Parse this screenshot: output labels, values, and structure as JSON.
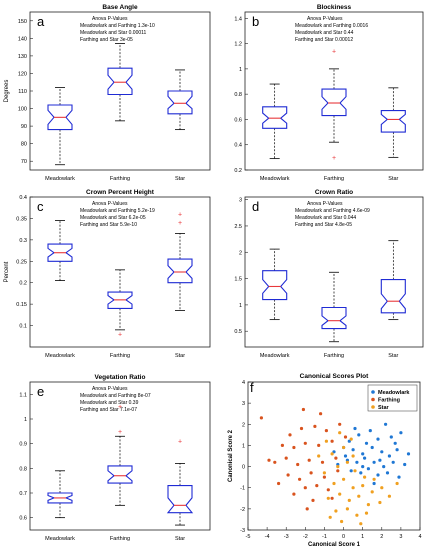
{
  "panels": [
    {
      "letter": "a",
      "title": "Base Angle",
      "ylabel": "Degrees",
      "ylim": [
        65,
        155
      ],
      "ticks": [
        70,
        80,
        90,
        100,
        110,
        120,
        130,
        140,
        150
      ],
      "stats": [
        "Anova P-Values",
        "Meadowlark and Farthing 1.3e-10",
        "Meadowlark and Star          0.00011",
        "Farthing and Star               3e-05"
      ]
    },
    {
      "letter": "b",
      "title": "Blockiness",
      "ylabel": "",
      "ylim": [
        0.2,
        1.45
      ],
      "ticks": [
        0.2,
        0.4,
        0.6,
        0.8,
        1,
        1.2,
        1.4
      ],
      "stats": [
        "Anova P-Values",
        "Meadowlark and Farthing 0.0016",
        "Meadowlark and Star          0.44",
        "Farthing and Star               0.00012"
      ]
    },
    {
      "letter": "c",
      "title": "Crown Percent Height",
      "ylabel": "Percent",
      "ylim": [
        0.05,
        0.4
      ],
      "ticks": [
        0.1,
        0.15,
        0.2,
        0.25,
        0.3,
        0.35,
        0.4
      ],
      "stats": [
        "Anova P-Values",
        "Meadowlark and Farthing 5.2e-19",
        "Meadowlark and Star          6.2e-05",
        "Farthing and Star               5.9e-10"
      ]
    },
    {
      "letter": "d",
      "title": "Crown Ratio",
      "ylabel": "",
      "ylim": [
        0.2,
        3.05
      ],
      "ticks": [
        0.5,
        1,
        1.5,
        2,
        2.5,
        3
      ],
      "stats": [
        "Anova P-Values",
        "Meadowlark and Farthing 4.6e-09",
        "Meadowlark and Star          0.044",
        "Farthing and Star               4.8e-05"
      ]
    },
    {
      "letter": "e",
      "title": "Vegetation Ratio",
      "ylabel": "",
      "ylim": [
        0.55,
        1.15
      ],
      "ticks": [
        0.6,
        0.7,
        0.8,
        0.9,
        1,
        1.1
      ],
      "stats": [
        "Anova P-Values",
        "Meadowlark and Farthing 8e-07",
        "Meadowlark and Star          0.39",
        "Farthing and Star               7.1e-07"
      ]
    }
  ],
  "scatter": {
    "letter": "f",
    "title": "Canonical Scores Plot",
    "xlabel": "Canonical Score 1",
    "ylabel": "Canonical Score 2",
    "xlim": [
      -5,
      4
    ],
    "ylim": [
      -3,
      4
    ],
    "xticks": [
      -5,
      -4,
      -3,
      -2,
      -1,
      0,
      1,
      2,
      3,
      4
    ],
    "yticks": [
      -3,
      -2,
      -1,
      0,
      1,
      2,
      3,
      4
    ]
  },
  "chart_data": [
    {
      "type": "box",
      "title": "Base Angle",
      "ylabel": "Degrees",
      "ylim": [
        65,
        155
      ],
      "categories": [
        "Meadowlark",
        "Farthing",
        "Star"
      ],
      "boxes": [
        {
          "whisker_low": 68,
          "q1": 88,
          "median": 95,
          "q3": 102,
          "whisker_high": 112,
          "notch": [
            91,
            99
          ],
          "outliers": []
        },
        {
          "whisker_low": 93,
          "q1": 108,
          "median": 115,
          "q3": 123,
          "whisker_high": 137,
          "notch": [
            111,
            119
          ],
          "outliers": []
        },
        {
          "whisker_low": 88,
          "q1": 97,
          "median": 103,
          "q3": 110,
          "whisker_high": 122,
          "notch": [
            100,
            107
          ],
          "outliers": []
        }
      ]
    },
    {
      "type": "box",
      "title": "Blockiness",
      "ylabel": "",
      "ylim": [
        0.2,
        1.45
      ],
      "categories": [
        "Meadowlark",
        "Farthing",
        "Star"
      ],
      "boxes": [
        {
          "whisker_low": 0.29,
          "q1": 0.53,
          "median": 0.61,
          "q3": 0.7,
          "whisker_high": 0.88,
          "notch": [
            0.57,
            0.65
          ],
          "outliers": []
        },
        {
          "whisker_low": 0.42,
          "q1": 0.63,
          "median": 0.73,
          "q3": 0.84,
          "whisker_high": 1.0,
          "notch": [
            0.68,
            0.78
          ],
          "outliers": [
            1.14,
            0.3
          ]
        },
        {
          "whisker_low": 0.3,
          "q1": 0.5,
          "median": 0.6,
          "q3": 0.67,
          "whisker_high": 0.85,
          "notch": [
            0.56,
            0.64
          ],
          "outliers": []
        }
      ]
    },
    {
      "type": "box",
      "title": "Crown Percent Height",
      "ylabel": "Percent",
      "ylim": [
        0.05,
        0.4
      ],
      "categories": [
        "Meadowlark",
        "Farthing",
        "Star"
      ],
      "boxes": [
        {
          "whisker_low": 0.205,
          "q1": 0.25,
          "median": 0.27,
          "q3": 0.29,
          "whisker_high": 0.345,
          "notch": [
            0.26,
            0.28
          ],
          "outliers": []
        },
        {
          "whisker_low": 0.09,
          "q1": 0.14,
          "median": 0.16,
          "q3": 0.178,
          "whisker_high": 0.23,
          "notch": [
            0.15,
            0.17
          ],
          "outliers": [
            0.08
          ]
        },
        {
          "whisker_low": 0.135,
          "q1": 0.2,
          "median": 0.225,
          "q3": 0.255,
          "whisker_high": 0.315,
          "notch": [
            0.21,
            0.24
          ],
          "outliers": [
            0.36,
            0.34
          ]
        }
      ]
    },
    {
      "type": "box",
      "title": "Crown Ratio",
      "ylabel": "",
      "ylim": [
        0.2,
        3.05
      ],
      "categories": [
        "Meadowlark",
        "Farthing",
        "Star"
      ],
      "boxes": [
        {
          "whisker_low": 0.72,
          "q1": 1.1,
          "median": 1.35,
          "q3": 1.65,
          "whisker_high": 2.06,
          "notch": [
            1.22,
            1.48
          ],
          "outliers": []
        },
        {
          "whisker_low": 0.3,
          "q1": 0.55,
          "median": 0.7,
          "q3": 0.95,
          "whisker_high": 1.62,
          "notch": [
            0.61,
            0.79
          ],
          "outliers": []
        },
        {
          "whisker_low": 0.72,
          "q1": 0.85,
          "median": 1.07,
          "q3": 1.48,
          "whisker_high": 2.22,
          "notch": [
            0.93,
            1.21
          ],
          "outliers": []
        }
      ]
    },
    {
      "type": "box",
      "title": "Vegetation Ratio",
      "ylabel": "",
      "ylim": [
        0.55,
        1.15
      ],
      "categories": [
        "Meadowlark",
        "Farthing",
        "Star"
      ],
      "boxes": [
        {
          "whisker_low": 0.6,
          "q1": 0.66,
          "median": 0.68,
          "q3": 0.7,
          "whisker_high": 0.79,
          "notch": [
            0.67,
            0.69
          ],
          "outliers": []
        },
        {
          "whisker_low": 0.65,
          "q1": 0.74,
          "median": 0.77,
          "q3": 0.81,
          "whisker_high": 0.93,
          "notch": [
            0.75,
            0.79
          ],
          "outliers": [
            1.05,
            0.95
          ]
        },
        {
          "whisker_low": 0.57,
          "q1": 0.62,
          "median": 0.65,
          "q3": 0.73,
          "whisker_high": 0.82,
          "notch": [
            0.62,
            0.68
          ],
          "outliers": [
            0.91
          ]
        }
      ]
    },
    {
      "type": "scatter",
      "title": "Canonical Scores Plot",
      "xlabel": "Canonical Score 1",
      "ylabel": "Canonical Score 2",
      "xlim": [
        -5,
        4
      ],
      "ylim": [
        -3,
        4
      ],
      "legend": "top-right",
      "series": [
        {
          "name": "Meadowlark",
          "color": "#1f77d4",
          "points": [
            [
              0.3,
              1.2
            ],
            [
              0.8,
              1.5
            ],
            [
              1.2,
              1.1
            ],
            [
              1.8,
              1.3
            ],
            [
              2.5,
              1.4
            ],
            [
              3.0,
              1.6
            ],
            [
              0.5,
              0.8
            ],
            [
              1.0,
              0.6
            ],
            [
              1.5,
              0.9
            ],
            [
              2.0,
              0.7
            ],
            [
              2.4,
              0.5
            ],
            [
              2.8,
              0.8
            ],
            [
              0.2,
              0.3
            ],
            [
              0.7,
              0.2
            ],
            [
              1.1,
              0.4
            ],
            [
              1.6,
              0.2
            ],
            [
              2.1,
              0.0
            ],
            [
              2.6,
              0.2
            ],
            [
              3.2,
              0.1
            ],
            [
              0.4,
              -0.2
            ],
            [
              0.9,
              -0.3
            ],
            [
              1.3,
              -0.1
            ],
            [
              1.8,
              -0.4
            ],
            [
              2.3,
              -0.3
            ],
            [
              2.9,
              -0.5
            ],
            [
              0.0,
              0.9
            ],
            [
              0.6,
              1.8
            ],
            [
              1.4,
              1.7
            ],
            [
              2.2,
              2.0
            ],
            [
              1.9,
              0.3
            ],
            [
              0.1,
              0.5
            ],
            [
              -0.3,
              0.1
            ],
            [
              -0.5,
              0.7
            ],
            [
              3.4,
              0.6
            ],
            [
              2.7,
              1.1
            ],
            [
              1.6,
              -0.8
            ],
            [
              1.0,
              0.0
            ]
          ]
        },
        {
          "name": "Farthing",
          "color": "#d9531e",
          "points": [
            [
              -4.3,
              2.3
            ],
            [
              -2.8,
              1.5
            ],
            [
              -2.2,
              1.8
            ],
            [
              -1.5,
              1.9
            ],
            [
              -0.9,
              1.7
            ],
            [
              -3.2,
              1.0
            ],
            [
              -2.6,
              0.9
            ],
            [
              -2.0,
              1.1
            ],
            [
              -1.3,
              1.0
            ],
            [
              -0.6,
              1.2
            ],
            [
              -3.6,
              0.2
            ],
            [
              -3.0,
              0.4
            ],
            [
              -2.4,
              0.1
            ],
            [
              -1.8,
              0.3
            ],
            [
              -1.1,
              0.2
            ],
            [
              -0.4,
              0.4
            ],
            [
              -3.9,
              0.3
            ],
            [
              -2.9,
              -0.4
            ],
            [
              -2.3,
              -0.6
            ],
            [
              -1.7,
              -0.3
            ],
            [
              -1.0,
              -0.5
            ],
            [
              -0.3,
              -0.2
            ],
            [
              -2.0,
              -1.0
            ],
            [
              -1.4,
              -0.9
            ],
            [
              -0.8,
              -1.1
            ],
            [
              -2.6,
              -1.3
            ],
            [
              -1.6,
              -1.6
            ],
            [
              -0.6,
              -1.5
            ],
            [
              -1.2,
              2.5
            ],
            [
              -0.2,
              2.0
            ],
            [
              -2.1,
              2.7
            ],
            [
              -3.4,
              -0.8
            ],
            [
              0.1,
              1.4
            ],
            [
              -1.9,
              -2.0
            ]
          ]
        },
        {
          "name": "Star",
          "color": "#f0a020",
          "points": [
            [
              -0.5,
              -0.8
            ],
            [
              0.0,
              -0.6
            ],
            [
              0.5,
              -1.0
            ],
            [
              1.0,
              -0.9
            ],
            [
              1.5,
              -1.2
            ],
            [
              2.0,
              -1.0
            ],
            [
              -0.8,
              -1.5
            ],
            [
              -0.2,
              -1.3
            ],
            [
              0.3,
              -1.6
            ],
            [
              0.8,
              -1.4
            ],
            [
              1.3,
              -1.8
            ],
            [
              1.9,
              -1.7
            ],
            [
              -0.4,
              -2.1
            ],
            [
              0.2,
              -2.0
            ],
            [
              0.7,
              -2.3
            ],
            [
              1.2,
              -2.2
            ],
            [
              -1.0,
              -0.3
            ],
            [
              -0.3,
              0.0
            ],
            [
              0.2,
              0.2
            ],
            [
              0.6,
              -0.2
            ],
            [
              1.1,
              -0.5
            ],
            [
              -0.6,
              0.6
            ],
            [
              0.0,
              0.9
            ],
            [
              0.5,
              0.5
            ],
            [
              -0.9,
              1.2
            ],
            [
              -0.2,
              1.6
            ],
            [
              0.4,
              1.3
            ],
            [
              -1.3,
              0.5
            ],
            [
              1.6,
              -0.6
            ],
            [
              2.4,
              -1.4
            ],
            [
              0.9,
              -2.7
            ],
            [
              -0.1,
              -2.6
            ],
            [
              2.8,
              -0.8
            ],
            [
              -0.7,
              -2.4
            ]
          ]
        }
      ]
    }
  ]
}
